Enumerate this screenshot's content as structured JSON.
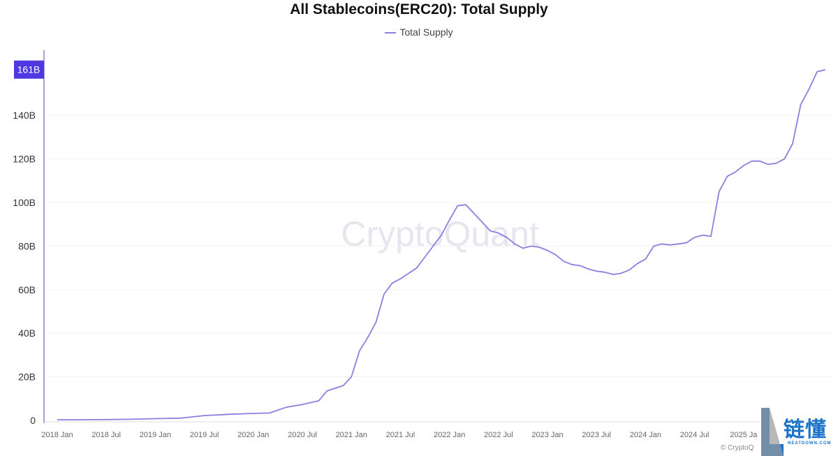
{
  "chart_data": {
    "type": "line",
    "title": "All Stablecoins(ERC20): Total Supply",
    "legend": {
      "entries": [
        "Total Supply"
      ],
      "placement": "top"
    },
    "series": [
      {
        "name": "Total Supply",
        "color": "#8b7fe0",
        "x": [
          "2018-01",
          "2018-04",
          "2018-07",
          "2018-10",
          "2019-01",
          "2019-04",
          "2019-07",
          "2019-10",
          "2020-01",
          "2020-03",
          "2020-05",
          "2020-07",
          "2020-09",
          "2020-10",
          "2020-12",
          "2021-01",
          "2021-02",
          "2021-03",
          "2021-04",
          "2021-05",
          "2021-06",
          "2021-07",
          "2021-09",
          "2021-10",
          "2021-12",
          "2022-01",
          "2022-02",
          "2022-03",
          "2022-04",
          "2022-05",
          "2022-06",
          "2022-07",
          "2022-08",
          "2022-09",
          "2022-10",
          "2022-11",
          "2022-12",
          "2023-01",
          "2023-02",
          "2023-03",
          "2023-04",
          "2023-05",
          "2023-06",
          "2023-07",
          "2023-08",
          "2023-09",
          "2023-10",
          "2023-11",
          "2023-12",
          "2024-01",
          "2024-02",
          "2024-03",
          "2024-04",
          "2024-05",
          "2024-06",
          "2024-07",
          "2024-08",
          "2024-09",
          "2024-10",
          "2024-11",
          "2024-12",
          "2025-01",
          "2025-02",
          "2025-03",
          "2025-04",
          "2025-05",
          "2025-06",
          "2025-07",
          "2025-08",
          "2025-09",
          "2025-10",
          "2025-11"
        ],
        "values": [
          0.3,
          0.3,
          0.4,
          0.5,
          0.8,
          1.0,
          2.2,
          2.8,
          3.2,
          3.4,
          6.0,
          7.3,
          9.0,
          13.5,
          16.0,
          20.0,
          32.0,
          38.0,
          45.0,
          58.0,
          63.0,
          65.0,
          70.0,
          75.0,
          85.0,
          92.0,
          98.5,
          99.0,
          95.0,
          91.0,
          87.0,
          86.0,
          84.0,
          81.0,
          79.0,
          80.0,
          79.5,
          78.0,
          76.0,
          73.0,
          71.5,
          71.0,
          69.5,
          68.5,
          68.0,
          67.0,
          67.5,
          69.0,
          72.0,
          74.0,
          80.0,
          81.0,
          80.5,
          81.0,
          81.5,
          84.0,
          85.0,
          84.5,
          105.0,
          112.0,
          114.0,
          117.0,
          119.0,
          119.0,
          117.5,
          118.0,
          120.0,
          127.0,
          145.0,
          152.0,
          160.0,
          161.0
        ]
      }
    ],
    "yticks": [
      "0",
      "20B",
      "40B",
      "60B",
      "80B",
      "100B",
      "120B",
      "140B"
    ],
    "ytick_values": [
      0,
      20,
      40,
      60,
      80,
      100,
      120,
      140
    ],
    "xticks": [
      "2018 Jan",
      "2018 Jul",
      "2019 Jan",
      "2019 Jul",
      "2020 Jan",
      "2020 Jul",
      "2021 Jan",
      "2021 Jul",
      "2022 Jan",
      "2022 Jul",
      "2023 Jan",
      "2023 Jul",
      "2024 Jan",
      "2024 Jul",
      "2025 Ja"
    ],
    "xtick_dates": [
      "2018-01",
      "2018-07",
      "2019-01",
      "2019-07",
      "2020-01",
      "2020-07",
      "2021-01",
      "2021-07",
      "2022-01",
      "2022-07",
      "2023-01",
      "2023-07",
      "2024-01",
      "2024-07",
      "2025-01"
    ],
    "ylim": [
      0,
      165
    ],
    "last_value_label": "161B",
    "last_value": 161,
    "grid": true,
    "label_color": "#5038e0"
  },
  "watermark": "CryptoQuant",
  "copyright": "© CryptoQ",
  "logo": {
    "text": "链懂",
    "sub": "NEATDOWN.COM"
  }
}
